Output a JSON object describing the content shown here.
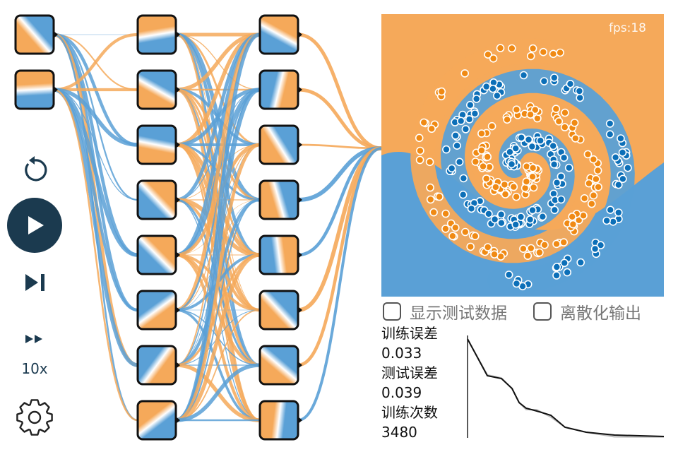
{
  "fps_label": "fps:18",
  "speed_label": "10x",
  "checkboxes": {
    "show_test": {
      "label": "显示测试数据",
      "checked": false
    },
    "discretize": {
      "label": "离散化输出",
      "checked": false
    }
  },
  "stats": {
    "train_loss_label": "训练误差",
    "train_loss_value": "0.033",
    "test_loss_label": "测试误差",
    "test_loss_value": "0.039",
    "epochs_label": "训练次数",
    "epochs_value": "3480"
  },
  "colors": {
    "positive": "#f5a95a",
    "negative": "#5aa0d6",
    "point_positive": "#f08a14",
    "point_negative": "#0c6fb8",
    "button_dark": "#1b3a4f"
  },
  "icons": [
    "reset-icon",
    "play-icon",
    "step-icon",
    "fast-forward-icon",
    "gear-icon"
  ],
  "network": {
    "layers": [
      {
        "neurons": [
          "x1",
          "x2"
        ]
      },
      {
        "neurons": [
          "h1-1",
          "h1-2",
          "h1-3",
          "h1-4",
          "h1-5",
          "h1-6",
          "h1-7",
          "h1-8"
        ]
      },
      {
        "neurons": [
          "h2-1",
          "h2-2",
          "h2-3",
          "h2-4",
          "h2-5",
          "h2-6",
          "h2-7",
          "h2-8"
        ]
      }
    ]
  }
}
